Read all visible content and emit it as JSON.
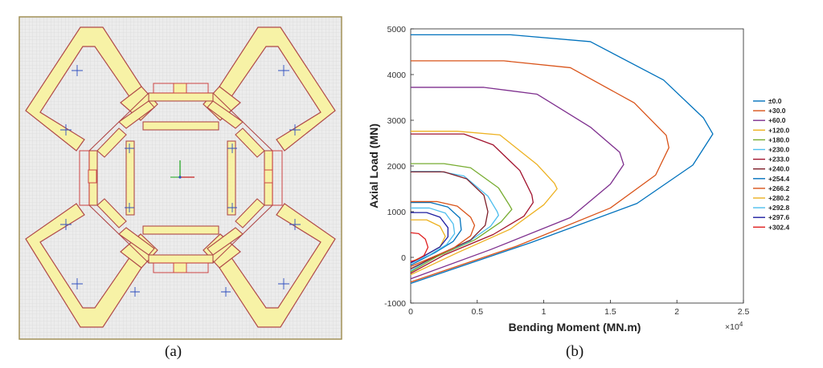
{
  "captions": {
    "a": "(a)",
    "b": "(b)"
  },
  "colors": {
    "plan_bg": "#e9e9e9",
    "plan_grid": "#d3d3d3",
    "plan_border": "#9c8a4d",
    "member_fill": "#f7f2a6",
    "member_edge": "#b04a4a",
    "connector": "#c44"
  },
  "chart_data": {
    "type": "line",
    "title": "",
    "xlabel": "Bending Moment (MN.m)",
    "ylabel": "Axial Load (MN)",
    "x_multiplier": "×10",
    "x_multiplier_exp": "4",
    "xlim": [
      0,
      2.5
    ],
    "ylim": [
      -1000,
      5000
    ],
    "xticks": [
      "0",
      "0.5",
      "1",
      "1.5",
      "2",
      "2.5"
    ],
    "yticks": [
      "-1000",
      "0",
      "1000",
      "2000",
      "3000",
      "4000",
      "5000"
    ],
    "grid": false,
    "legend_position": "right",
    "series": [
      {
        "name": "±0.0",
        "color": "#0072BD",
        "points": [
          [
            0,
            4870
          ],
          [
            0.75,
            4870
          ],
          [
            1.35,
            4720
          ],
          [
            1.9,
            3880
          ],
          [
            2.2,
            3050
          ],
          [
            2.27,
            2700
          ],
          [
            2.12,
            2020
          ],
          [
            1.7,
            1180
          ],
          [
            0.9,
            320
          ],
          [
            0,
            -570
          ]
        ]
      },
      {
        "name": "+30.0",
        "color": "#D95319",
        "points": [
          [
            0,
            4300
          ],
          [
            0.7,
            4300
          ],
          [
            1.2,
            4150
          ],
          [
            1.68,
            3380
          ],
          [
            1.92,
            2670
          ],
          [
            1.94,
            2400
          ],
          [
            1.84,
            1800
          ],
          [
            1.5,
            1080
          ],
          [
            0.8,
            250
          ],
          [
            0,
            -540
          ]
        ]
      },
      {
        "name": "+60.0",
        "color": "#7E2F8E",
        "points": [
          [
            0,
            3720
          ],
          [
            0.55,
            3720
          ],
          [
            0.95,
            3570
          ],
          [
            1.35,
            2850
          ],
          [
            1.57,
            2300
          ],
          [
            1.6,
            2030
          ],
          [
            1.5,
            1600
          ],
          [
            1.2,
            870
          ],
          [
            0.6,
            170
          ],
          [
            0,
            -470
          ]
        ]
      },
      {
        "name": "+120.0",
        "color": "#EDB120",
        "points": [
          [
            0,
            2760
          ],
          [
            0.35,
            2760
          ],
          [
            0.67,
            2680
          ],
          [
            0.95,
            2030
          ],
          [
            1.08,
            1620
          ],
          [
            1.1,
            1500
          ],
          [
            1.0,
            1150
          ],
          [
            0.75,
            620
          ],
          [
            0.35,
            100
          ],
          [
            0,
            -380
          ]
        ]
      },
      {
        "name": "+180.0",
        "color": "#77AC30",
        "points": [
          [
            0,
            2050
          ],
          [
            0.25,
            2050
          ],
          [
            0.45,
            1960
          ],
          [
            0.66,
            1520
          ],
          [
            0.74,
            1150
          ],
          [
            0.76,
            1050
          ],
          [
            0.68,
            780
          ],
          [
            0.48,
            380
          ],
          [
            0.2,
            20
          ],
          [
            0,
            -320
          ]
        ]
      },
      {
        "name": "+230.0",
        "color": "#4DBEEE",
        "points": [
          [
            0,
            1880
          ],
          [
            0.22,
            1880
          ],
          [
            0.4,
            1780
          ],
          [
            0.58,
            1340
          ],
          [
            0.65,
            1000
          ],
          [
            0.66,
            920
          ],
          [
            0.6,
            680
          ],
          [
            0.43,
            330
          ],
          [
            0.18,
            20
          ],
          [
            0,
            -290
          ]
        ]
      },
      {
        "name": "+233.0",
        "color": "#A2142F",
        "points": [
          [
            0,
            2700
          ],
          [
            0.4,
            2700
          ],
          [
            0.62,
            2460
          ],
          [
            0.82,
            1900
          ],
          [
            0.91,
            1370
          ],
          [
            0.92,
            1200
          ],
          [
            0.85,
            900
          ],
          [
            0.62,
            500
          ],
          [
            0.25,
            50
          ],
          [
            0,
            -350
          ]
        ]
      },
      {
        "name": "+240.0",
        "color": "#7E1F2A",
        "points": [
          [
            0,
            1870
          ],
          [
            0.25,
            1870
          ],
          [
            0.42,
            1720
          ],
          [
            0.55,
            1360
          ],
          [
            0.58,
            1000
          ],
          [
            0.56,
            700
          ],
          [
            0.45,
            380
          ],
          [
            0.22,
            70
          ],
          [
            0,
            -250
          ]
        ]
      },
      {
        "name": "+254.4",
        "color": "#0072BD",
        "points": [
          [
            0,
            1200
          ],
          [
            0.15,
            1200
          ],
          [
            0.28,
            1100
          ],
          [
            0.37,
            860
          ],
          [
            0.38,
            600
          ],
          [
            0.32,
            350
          ],
          [
            0.18,
            100
          ],
          [
            0,
            -170
          ]
        ]
      },
      {
        "name": "+266.2",
        "color": "#D95319",
        "points": [
          [
            0,
            1220
          ],
          [
            0.2,
            1220
          ],
          [
            0.35,
            1120
          ],
          [
            0.45,
            880
          ],
          [
            0.48,
            700
          ],
          [
            0.45,
            470
          ],
          [
            0.32,
            200
          ],
          [
            0.12,
            -50
          ],
          [
            0,
            -200
          ]
        ]
      },
      {
        "name": "+280.2",
        "color": "#EDB120",
        "points": [
          [
            0,
            820
          ],
          [
            0.12,
            820
          ],
          [
            0.22,
            680
          ],
          [
            0.26,
            460
          ],
          [
            0.22,
            230
          ],
          [
            0.1,
            30
          ],
          [
            0,
            -100
          ]
        ]
      },
      {
        "name": "+292.8",
        "color": "#4DBEEE",
        "points": [
          [
            0,
            1080
          ],
          [
            0.14,
            1080
          ],
          [
            0.26,
            970
          ],
          [
            0.32,
            730
          ],
          [
            0.33,
            520
          ],
          [
            0.27,
            280
          ],
          [
            0.14,
            50
          ],
          [
            0,
            -130
          ]
        ]
      },
      {
        "name": "+297.6",
        "color": "#1E1EA0",
        "points": [
          [
            0,
            980
          ],
          [
            0.12,
            980
          ],
          [
            0.22,
            880
          ],
          [
            0.28,
            650
          ],
          [
            0.28,
            450
          ],
          [
            0.22,
            230
          ],
          [
            0.1,
            30
          ],
          [
            0,
            -120
          ]
        ]
      },
      {
        "name": "+302.4",
        "color": "#E02020",
        "points": [
          [
            0,
            540
          ],
          [
            0.06,
            520
          ],
          [
            0.11,
            400
          ],
          [
            0.13,
            220
          ],
          [
            0.1,
            40
          ],
          [
            0.04,
            -60
          ],
          [
            0,
            -90
          ]
        ]
      }
    ]
  }
}
